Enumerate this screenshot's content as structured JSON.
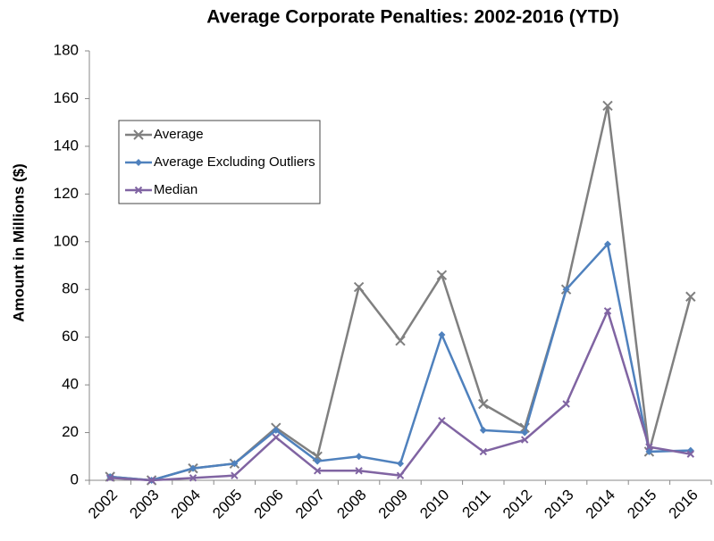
{
  "chart_data": {
    "type": "line",
    "title": "Average Corporate Penalties: 2002-2016 (YTD)",
    "y_label": "Amount in Millions ($)",
    "categories": [
      "2002",
      "2003",
      "2004",
      "2005",
      "2006",
      "2007",
      "2008",
      "2009",
      "2010",
      "2011",
      "2012",
      "2013",
      "2014",
      "2015",
      "2016"
    ],
    "series": [
      {
        "name": "Average",
        "color": "#808080",
        "marker": "x",
        "values": [
          1.5,
          0,
          5,
          7,
          22,
          10,
          81,
          58.5,
          86,
          32,
          22,
          80,
          157,
          12,
          77
        ]
      },
      {
        "name": "Average Excluding Outliers",
        "color": "#4f81bd",
        "marker": "diamond",
        "values": [
          1.5,
          0,
          5,
          7,
          21,
          8,
          10,
          7,
          61,
          21,
          20,
          80,
          99,
          12,
          12.5
        ]
      },
      {
        "name": "Median",
        "color": "#8064a2",
        "marker": "x",
        "values": [
          1,
          0,
          1,
          2,
          18,
          4,
          4,
          2,
          25,
          12,
          17,
          32,
          71,
          14,
          11
        ]
      }
    ],
    "ylim": [
      0,
      180
    ],
    "yticks": [
      0,
      20,
      40,
      60,
      80,
      100,
      120,
      140,
      160,
      180
    ],
    "grid": false,
    "legend": "upper left"
  }
}
